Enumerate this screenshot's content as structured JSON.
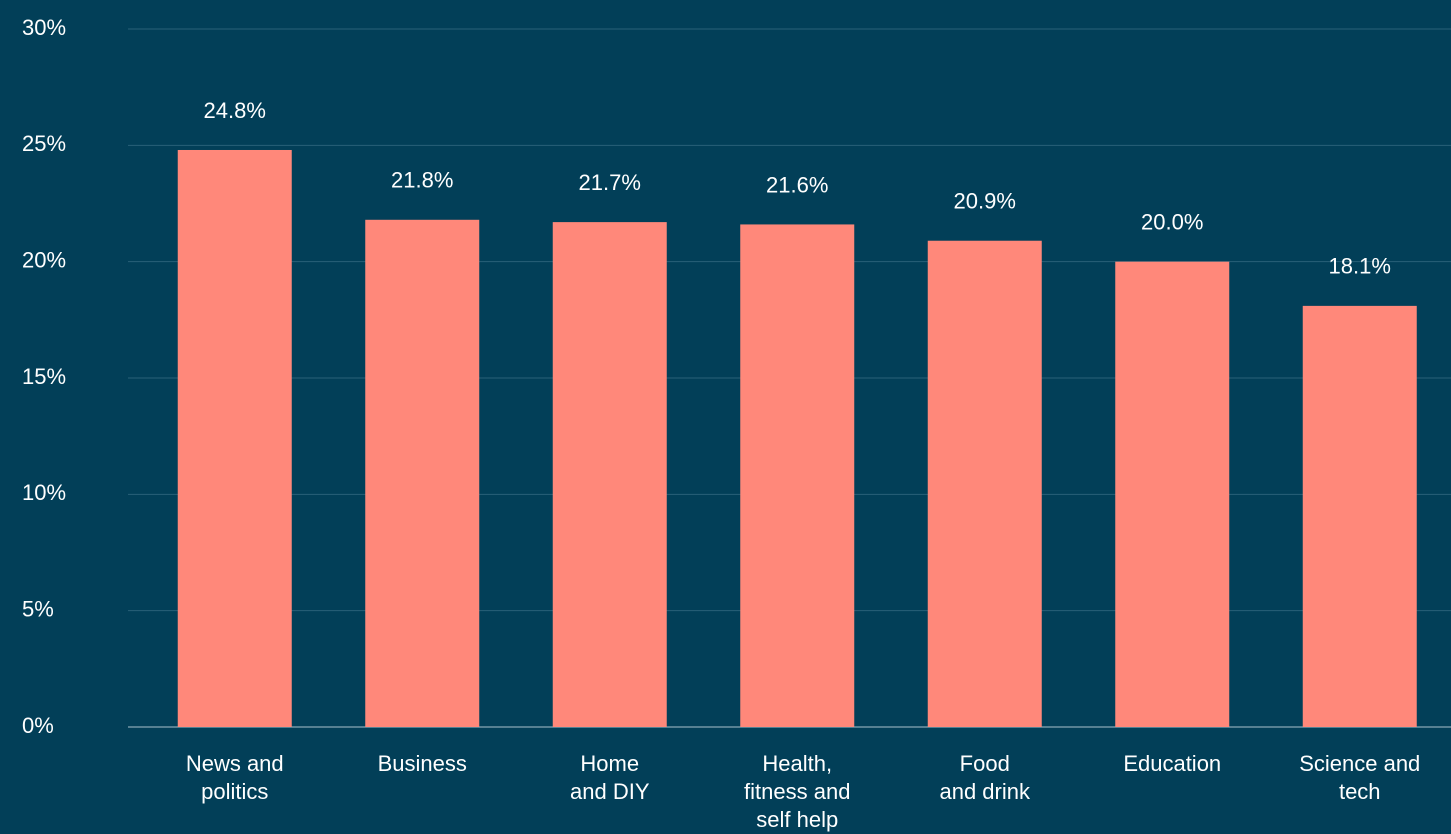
{
  "chart_data": {
    "type": "bar",
    "categories": [
      "News and\npolitics",
      "Business",
      "Home\nand DIY",
      "Health,\nfitness and\nself help",
      "Food\nand drink",
      "Education",
      "Science and\ntech"
    ],
    "values": [
      24.8,
      21.8,
      21.7,
      21.6,
      20.9,
      20.0,
      18.1
    ],
    "value_labels": [
      "24.8%",
      "21.8%",
      "21.7%",
      "21.6%",
      "20.9%",
      "20.0%",
      "18.1%"
    ],
    "color": "#ff887a",
    "ylim": [
      0,
      30
    ],
    "yticks": [
      {
        "value": 0,
        "label": "0%"
      },
      {
        "value": 5,
        "label": "5%"
      },
      {
        "value": 10,
        "label": "10%"
      },
      {
        "value": 15,
        "label": "15%"
      },
      {
        "value": 20,
        "label": "20%"
      },
      {
        "value": 25,
        "label": "25%"
      },
      {
        "value": 30,
        "label": "30%"
      }
    ],
    "grid": true
  }
}
